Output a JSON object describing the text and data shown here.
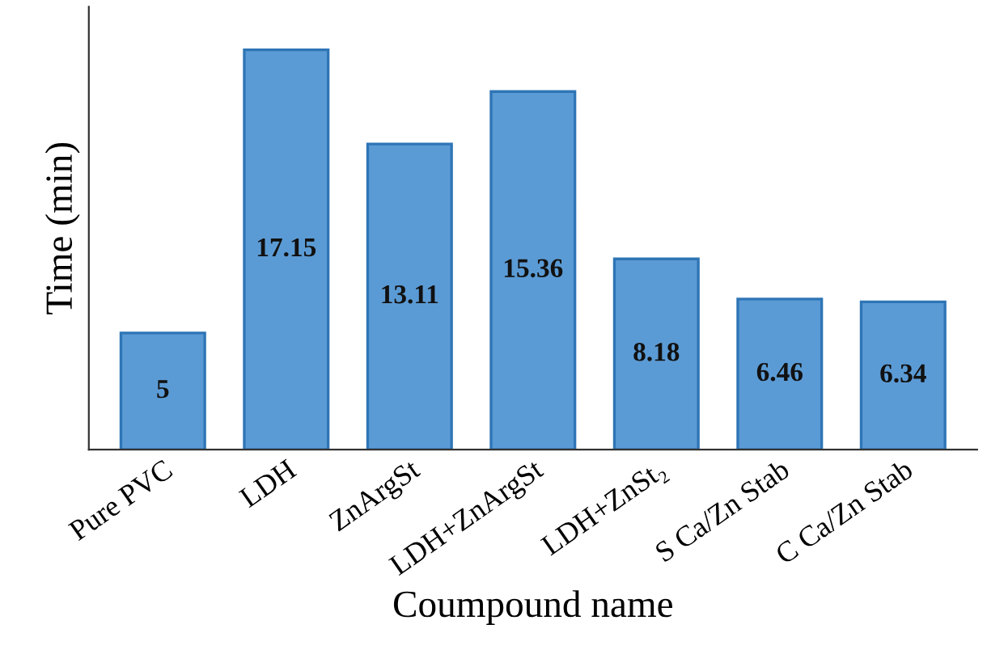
{
  "chart_data": {
    "type": "bar",
    "xlabel": "Coumpound name",
    "ylabel": "Time (min)",
    "categories": [
      "Pure PVC",
      "LDH",
      "ZnArgSt",
      "LDH+ZnArgSt",
      "LDH+ZnSt₂",
      "S Ca/Zn Stab",
      "C Ca/Zn Stab"
    ],
    "values": [
      5,
      17.15,
      13.11,
      15.36,
      8.18,
      6.46,
      6.34
    ],
    "color": "#5b9bd5",
    "ylim": [
      0,
      19
    ],
    "data_labels": true,
    "grid": false,
    "legend": false
  }
}
